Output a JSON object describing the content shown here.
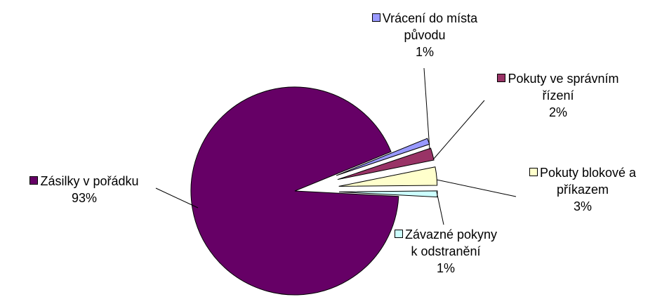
{
  "chart_data": {
    "type": "pie",
    "categories": [
      "Závazné pokyny k odstranění",
      "Pokuty blokové a příkazem",
      "Pokuty ve správním řízení",
      "Vrácení do místa původu",
      "Zásilky v pořádku"
    ],
    "values": [
      1,
      3,
      2,
      1,
      93
    ],
    "value_labels": [
      "1%",
      "3%",
      "2%",
      "1%",
      "93%"
    ],
    "colors": [
      "#ccffff",
      "#ffffcc",
      "#993366",
      "#9999ff",
      "#660066"
    ]
  }
}
